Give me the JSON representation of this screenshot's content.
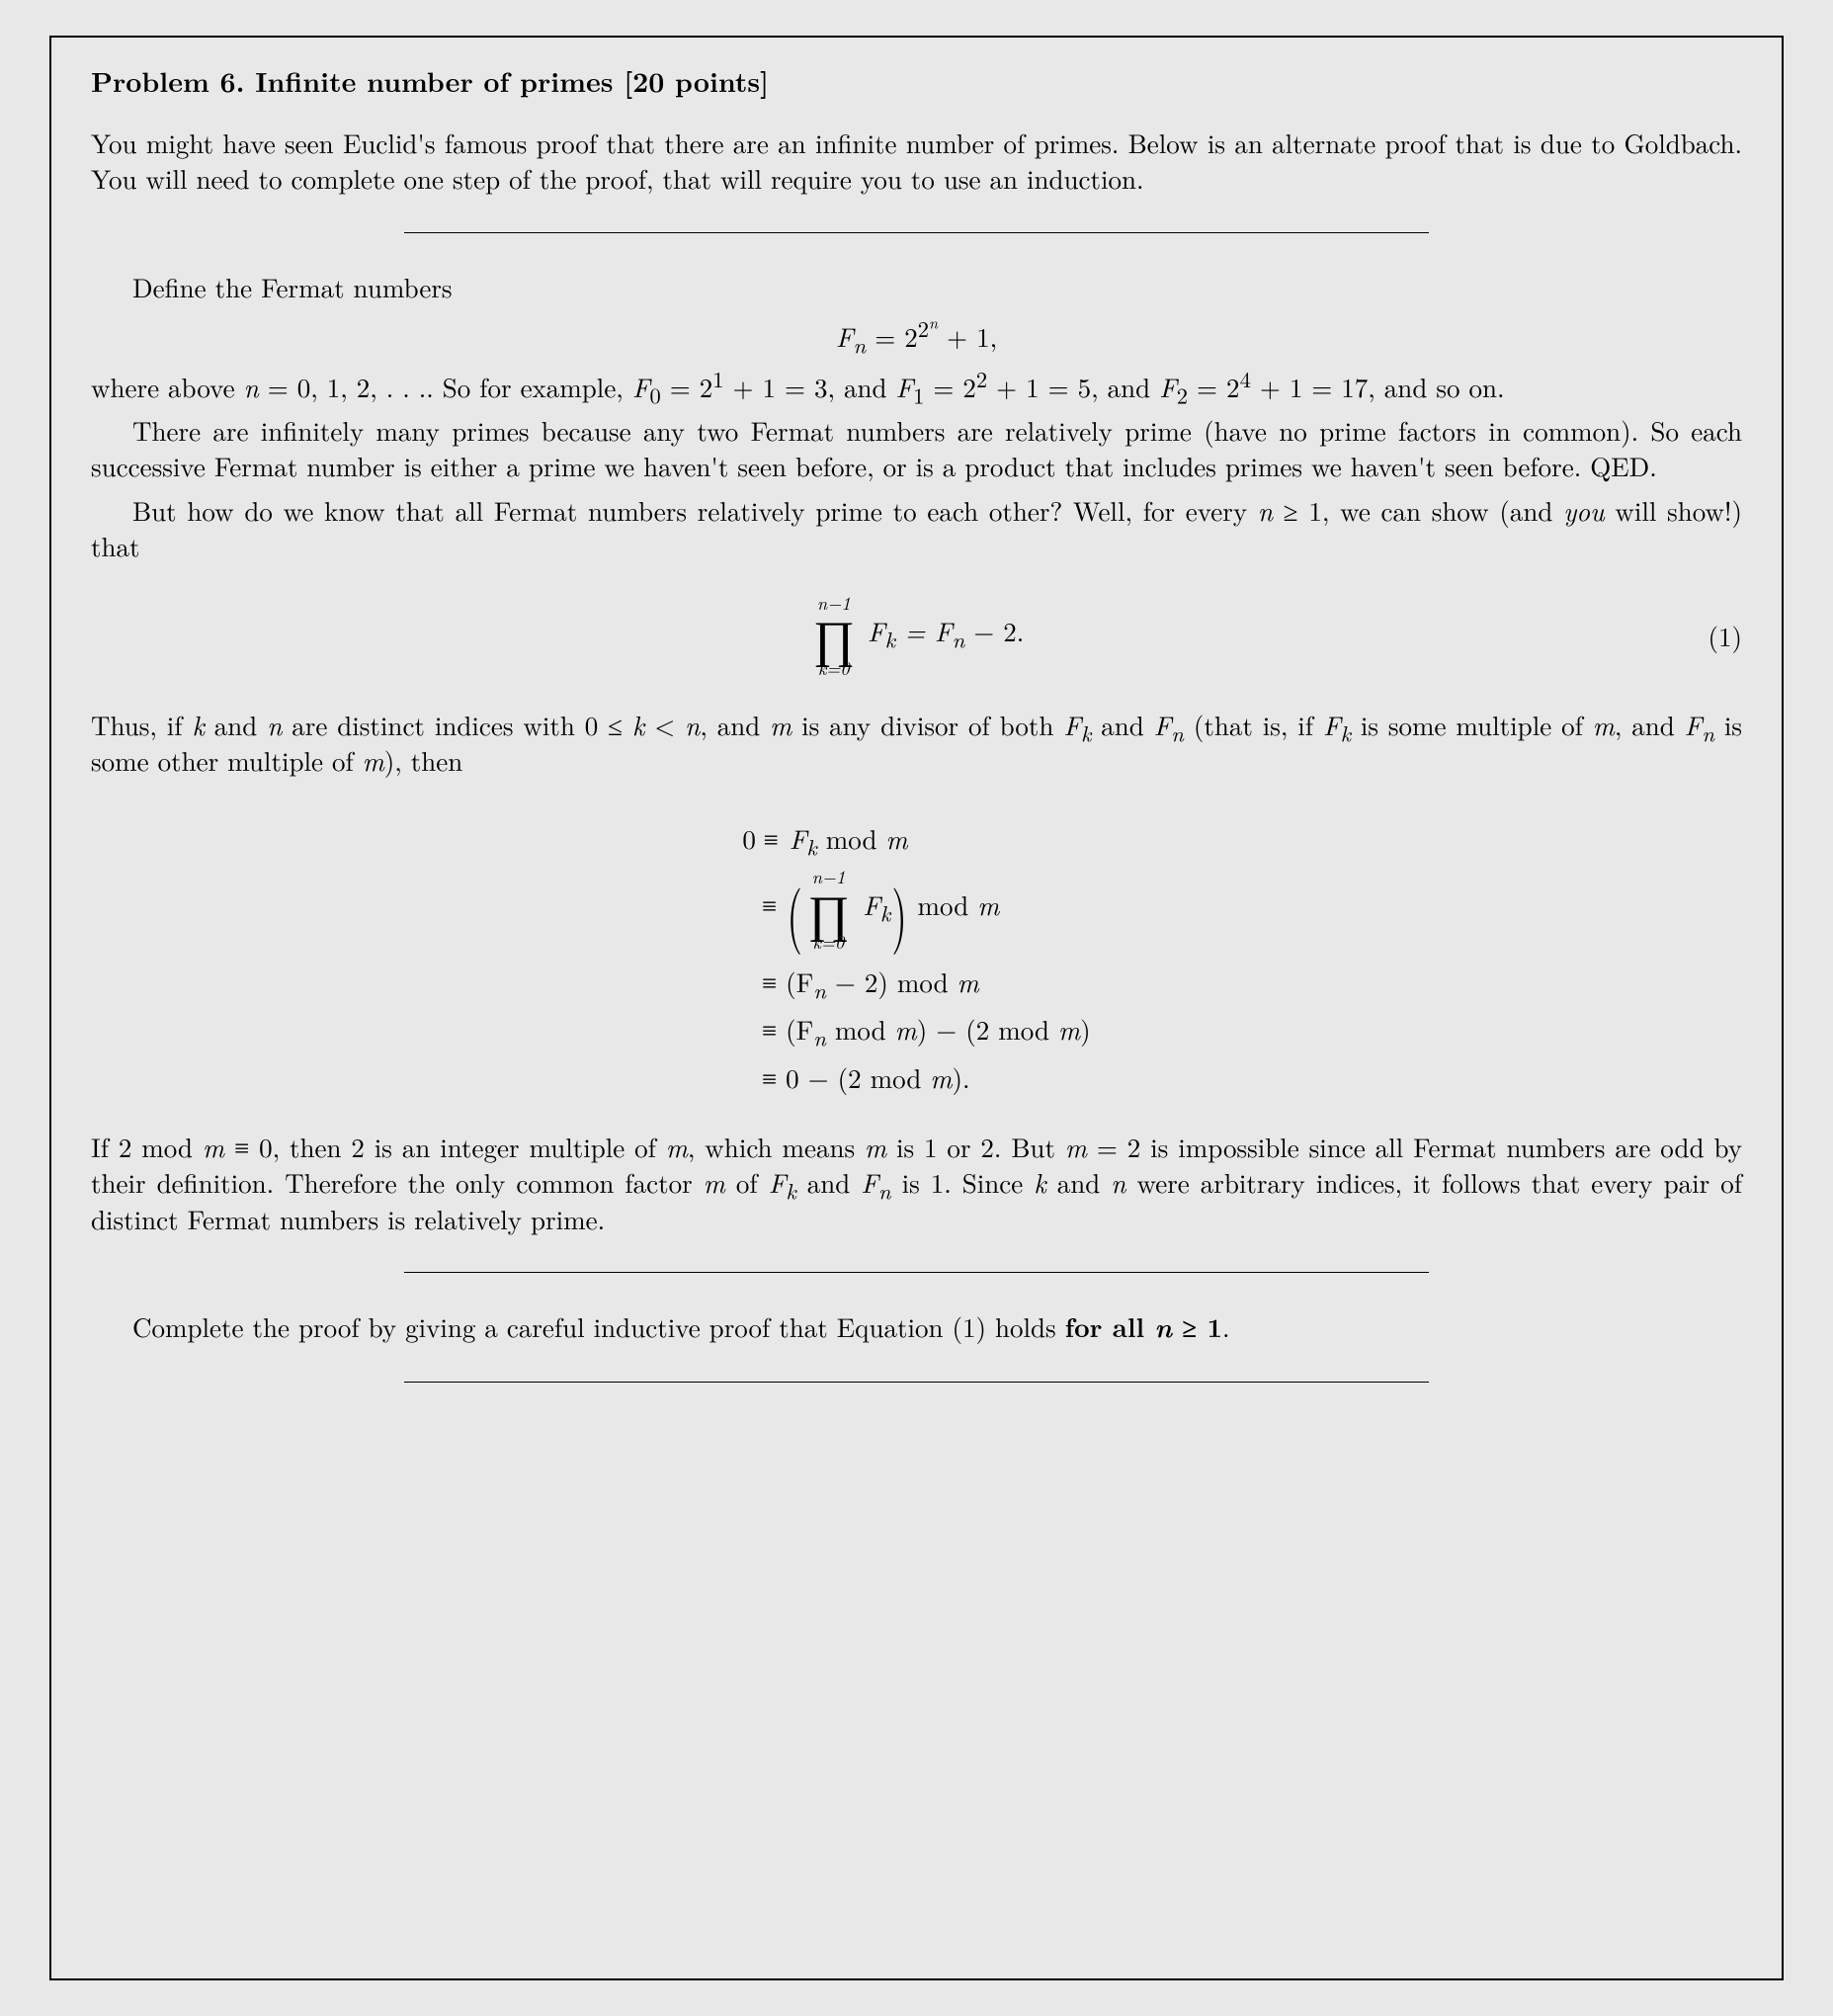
{
  "title": "Problem 6. Infinite number of primes [20 points]",
  "p1": "You might have seen Euclid's famous proof that there are an infinite number of primes. Below is an alternate proof that is due to Goldbach. You will need to complete one step of the proof, that will require you to use an induction.",
  "p2": "Define the Fermat numbers",
  "eq1_lhs": "F",
  "eq1_sub": "n",
  "eq1_mid": " = 2",
  "eq1_exp_base": "2",
  "eq1_exp_sup": "n",
  "eq1_rhs": " + 1,",
  "p3a": "where above ",
  "p3b": "n",
  "p3c": " = 0, 1, 2, . . .. So for example, ",
  "p3d": "F",
  "p3e": "0",
  "p3f": " = 2",
  "p3g": "1",
  "p3h": " + 1 = 3, and ",
  "p3i": "F",
  "p3j": "1",
  "p3k": " = 2",
  "p3l": "2",
  "p3m": " + 1 = 5, and ",
  "p3n": "F",
  "p3o": "2",
  "p3p": " = 2",
  "p3q": "4",
  "p3r": " + 1 = 17, and so on.",
  "p4": "There are infinitely many primes because any two Fermat numbers are relatively prime (have no prime factors in common). So each successive Fermat number is either a prime we haven't seen before, or is a product that includes primes we haven't seen before. QED.",
  "p5a": "But how do we know that all Fermat numbers relatively prime to each other? Well, for every ",
  "p5b": "n",
  "p5c": " ≥ 1, we can show (and ",
  "p5d": "you",
  "p5e": " will show!) that",
  "prod_top": "n−1",
  "prod_sym": "∏",
  "prod_bot": "k=0",
  "prod_body_a": " F",
  "prod_body_b": "k",
  "prod_body_c": " = F",
  "prod_body_d": "n",
  "prod_body_e": " − 2.",
  "eqnum1": "(1)",
  "p6a": "Thus, if ",
  "p6b": "k",
  "p6c": " and ",
  "p6d": "n",
  "p6e": " are distinct indices with 0 ≤ ",
  "p6f": "k",
  "p6g": " < ",
  "p6h": "n",
  "p6i": ", and ",
  "p6j": "m",
  "p6k": " is any divisor of both ",
  "p6l": "F",
  "p6m": "k",
  "p6n": " and ",
  "p6o": "F",
  "p6p": "n",
  "p6q": " (that is, if ",
  "p6r": "F",
  "p6s": "k",
  "p6t": " is some multiple of ",
  "p6u": "m",
  "p6v": ", and ",
  "p6w": "F",
  "p6x": "n",
  "p6y": " is some other multiple of ",
  "p6z": "m",
  "p6aa": "), then",
  "al1_l": "0 ",
  "al1_r_a": "≡ F",
  "al1_r_b": "k",
  "al1_r_c": " mod ",
  "al1_r_d": "m",
  "al2_r_a": "≡ ",
  "al2_r_b": " mod ",
  "al2_r_c": "m",
  "al3_r_a": "≡ (F",
  "al3_r_b": "n",
  "al3_r_c": " − 2) mod ",
  "al3_r_d": "m",
  "al4_r_a": "≡ (F",
  "al4_r_b": "n",
  "al4_r_c": " mod ",
  "al4_r_d": "m",
  "al4_r_e": ") − (2 mod ",
  "al4_r_f": "m",
  "al4_r_g": ")",
  "al5_r_a": "≡ 0 − (2 mod ",
  "al5_r_b": "m",
  "al5_r_c": ").",
  "p7a": "If 2 mod ",
  "p7b": "m",
  "p7c": " ≡ 0, then 2 is an integer multiple of ",
  "p7d": "m",
  "p7e": ", which means ",
  "p7f": "m",
  "p7g": " is 1 or 2. But ",
  "p7h": "m",
  "p7i": " = 2 is impossible since all Fermat numbers are odd by their definition. Therefore the only common factor ",
  "p7j": "m",
  "p7k": " of ",
  "p7l": "F",
  "p7m": "k",
  "p7n": " and ",
  "p7o": "F",
  "p7p": "n",
  "p7q": " is 1. Since ",
  "p7r": "k",
  "p7s": " and ",
  "p7t": "n",
  "p7u": " were arbitrary indices, it follows that every pair of distinct Fermat numbers is relatively prime.",
  "p8a": "Complete the proof by giving a careful inductive proof that Equation (1) holds ",
  "p8b": "for all ",
  "p8c": "n",
  "p8d": " ≥ 1",
  "p8e": "."
}
